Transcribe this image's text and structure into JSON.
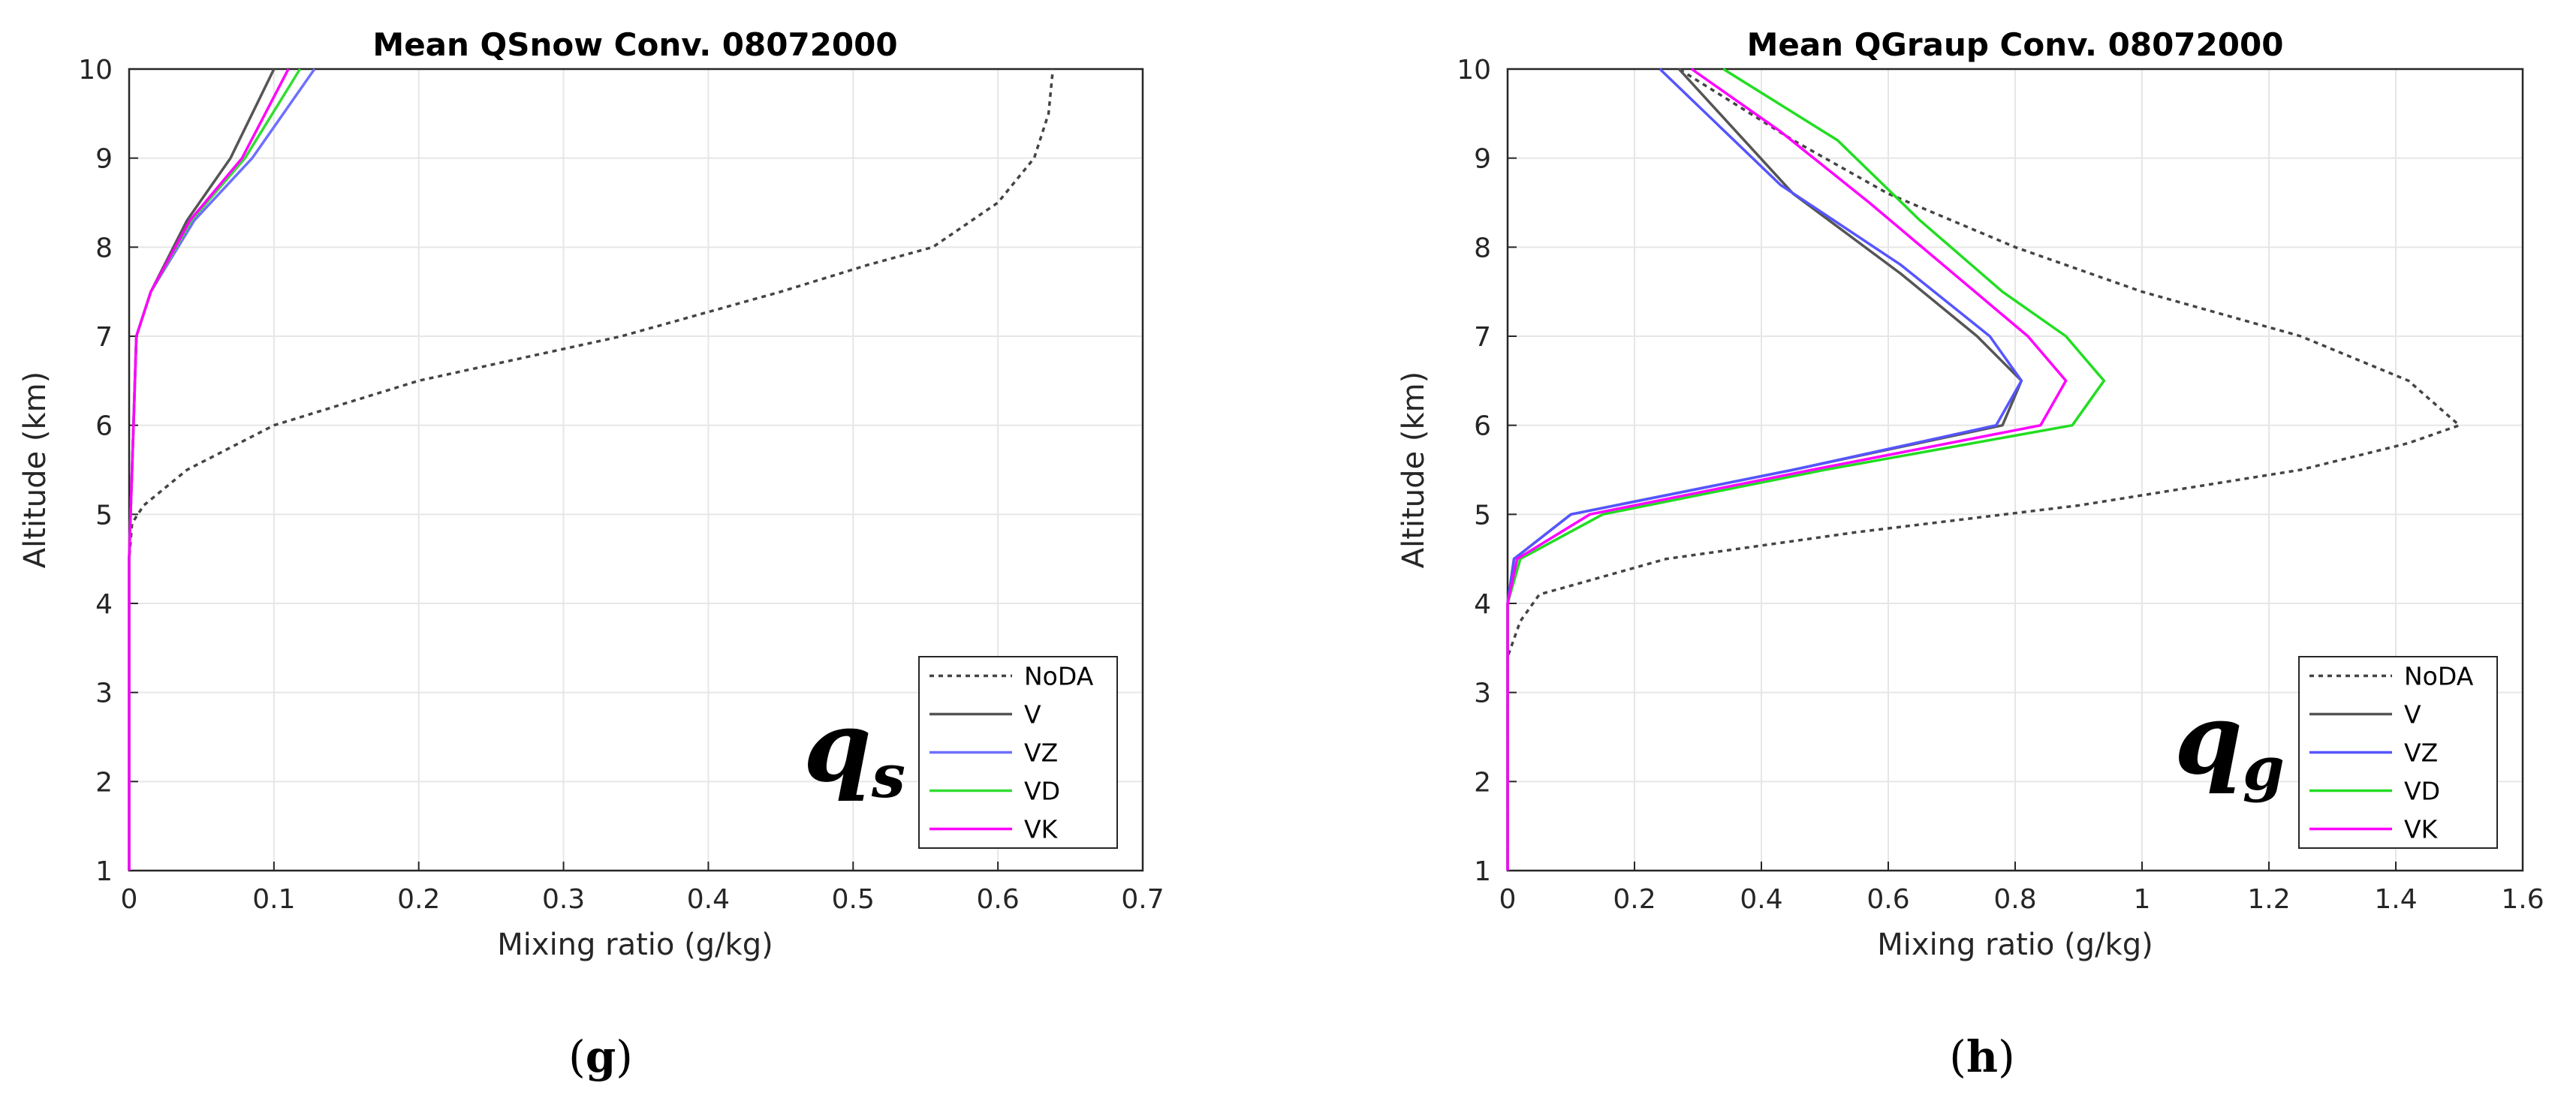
{
  "chart_data": [
    {
      "type": "line",
      "panel_label": "g",
      "title": "Mean QSnow Conv. 08072000",
      "xlabel": "Mixing ratio (g/kg)",
      "ylabel": "Altitude (km)",
      "xlim": [
        0,
        0.7
      ],
      "ylim": [
        1,
        10
      ],
      "xticks": [
        0,
        0.1,
        0.2,
        0.3,
        0.4,
        0.5,
        0.6,
        0.7
      ],
      "xtick_labels": [
        "0",
        "0.1",
        "0.2",
        "0.3",
        "0.4",
        "0.5",
        "0.6",
        "0.7"
      ],
      "yticks": [
        1,
        2,
        3,
        4,
        5,
        6,
        7,
        8,
        9,
        10
      ],
      "ytick_labels": [
        "1",
        "2",
        "3",
        "4",
        "5",
        "6",
        "7",
        "8",
        "9",
        "10"
      ],
      "grid": true,
      "legend": "bottom-right",
      "var_label": {
        "main": "q",
        "sub": "s"
      },
      "series": [
        {
          "name": "NoDA",
          "style": "dotted",
          "color": "#444444",
          "points": [
            [
              0,
              1
            ],
            [
              0,
              4
            ],
            [
              0,
              4.5
            ],
            [
              0.002,
              4.9
            ],
            [
              0.01,
              5.1
            ],
            [
              0.04,
              5.5
            ],
            [
              0.1,
              6.0
            ],
            [
              0.2,
              6.5
            ],
            [
              0.34,
              7.0
            ],
            [
              0.45,
              7.5
            ],
            [
              0.51,
              7.8
            ],
            [
              0.555,
              8.0
            ],
            [
              0.6,
              8.5
            ],
            [
              0.625,
              9.0
            ],
            [
              0.635,
              9.5
            ],
            [
              0.638,
              10
            ]
          ]
        },
        {
          "name": "V",
          "style": "solid",
          "color": "#555555",
          "points": [
            [
              0,
              1
            ],
            [
              0,
              4.5
            ],
            [
              0.001,
              5.0
            ],
            [
              0.003,
              6.0
            ],
            [
              0.005,
              7.0
            ],
            [
              0.015,
              7.5
            ],
            [
              0.04,
              8.3
            ],
            [
              0.07,
              9.0
            ],
            [
              0.1,
              10
            ]
          ]
        },
        {
          "name": "VZ",
          "style": "solid",
          "color": "#6f6fff",
          "points": [
            [
              0,
              1
            ],
            [
              0,
              4.5
            ],
            [
              0.001,
              5.0
            ],
            [
              0.003,
              6.0
            ],
            [
              0.005,
              7.0
            ],
            [
              0.015,
              7.5
            ],
            [
              0.045,
              8.3
            ],
            [
              0.085,
              9.0
            ],
            [
              0.128,
              10
            ]
          ]
        },
        {
          "name": "VD",
          "style": "solid",
          "color": "#33dd33",
          "points": [
            [
              0,
              1
            ],
            [
              0,
              4.5
            ],
            [
              0.001,
              5.0
            ],
            [
              0.003,
              6.0
            ],
            [
              0.005,
              7.0
            ],
            [
              0.015,
              7.5
            ],
            [
              0.043,
              8.3
            ],
            [
              0.08,
              9.0
            ],
            [
              0.118,
              10
            ]
          ]
        },
        {
          "name": "VK",
          "style": "solid",
          "color": "#ff00ff",
          "points": [
            [
              0,
              1
            ],
            [
              0,
              4.5
            ],
            [
              0.001,
              5.0
            ],
            [
              0.003,
              6.0
            ],
            [
              0.005,
              7.0
            ],
            [
              0.015,
              7.5
            ],
            [
              0.042,
              8.3
            ],
            [
              0.078,
              9.0
            ],
            [
              0.11,
              10
            ]
          ]
        }
      ]
    },
    {
      "type": "line",
      "panel_label": "h",
      "title": "Mean QGraup Conv. 08072000",
      "xlabel": "Mixing ratio (g/kg)",
      "ylabel": "Altitude (km)",
      "xlim": [
        0,
        1.6
      ],
      "ylim": [
        1,
        10
      ],
      "xticks": [
        0,
        0.2,
        0.4,
        0.6,
        0.8,
        1,
        1.2,
        1.4,
        1.6
      ],
      "xtick_labels": [
        "0",
        "0.2",
        "0.4",
        "0.6",
        "0.8",
        "1",
        "1.2",
        "1.4",
        "1.6"
      ],
      "yticks": [
        1,
        2,
        3,
        4,
        5,
        6,
        7,
        8,
        9,
        10
      ],
      "ytick_labels": [
        "1",
        "2",
        "3",
        "4",
        "5",
        "6",
        "7",
        "8",
        "9",
        "10"
      ],
      "grid": true,
      "legend": "bottom-right",
      "var_label": {
        "main": "q",
        "sub": "g"
      },
      "series": [
        {
          "name": "NoDA",
          "style": "dotted",
          "color": "#444444",
          "points": [
            [
              0,
              1
            ],
            [
              0,
              3.4
            ],
            [
              0.02,
              3.8
            ],
            [
              0.05,
              4.1
            ],
            [
              0.25,
              4.5
            ],
            [
              0.55,
              4.8
            ],
            [
              0.9,
              5.1
            ],
            [
              1.25,
              5.5
            ],
            [
              1.42,
              5.8
            ],
            [
              1.5,
              6.0
            ],
            [
              1.42,
              6.5
            ],
            [
              1.25,
              7.0
            ],
            [
              1.0,
              7.5
            ],
            [
              0.8,
              8.0
            ],
            [
              0.6,
              8.6
            ],
            [
              0.45,
              9.2
            ],
            [
              0.27,
              10
            ]
          ]
        },
        {
          "name": "V",
          "style": "solid",
          "color": "#555555",
          "points": [
            [
              0,
              1
            ],
            [
              0,
              4.0
            ],
            [
              0.01,
              4.5
            ],
            [
              0.1,
              5.0
            ],
            [
              0.45,
              5.5
            ],
            [
              0.78,
              6.0
            ],
            [
              0.81,
              6.5
            ],
            [
              0.74,
              7.0
            ],
            [
              0.62,
              7.7
            ],
            [
              0.45,
              8.6
            ],
            [
              0.27,
              10
            ]
          ]
        },
        {
          "name": "VZ",
          "style": "solid",
          "color": "#5555ff",
          "points": [
            [
              0,
              1
            ],
            [
              0,
              4.0
            ],
            [
              0.01,
              4.5
            ],
            [
              0.1,
              5.0
            ],
            [
              0.45,
              5.5
            ],
            [
              0.77,
              6.0
            ],
            [
              0.81,
              6.5
            ],
            [
              0.76,
              7.0
            ],
            [
              0.62,
              7.8
            ],
            [
              0.43,
              8.7
            ],
            [
              0.24,
              10
            ]
          ]
        },
        {
          "name": "VD",
          "style": "solid",
          "color": "#22dd22",
          "points": [
            [
              0,
              1
            ],
            [
              0,
              4.0
            ],
            [
              0.02,
              4.5
            ],
            [
              0.15,
              5.0
            ],
            [
              0.5,
              5.5
            ],
            [
              0.89,
              6.0
            ],
            [
              0.94,
              6.5
            ],
            [
              0.88,
              7.0
            ],
            [
              0.78,
              7.5
            ],
            [
              0.65,
              8.3
            ],
            [
              0.52,
              9.2
            ],
            [
              0.34,
              10
            ]
          ]
        },
        {
          "name": "VK",
          "style": "solid",
          "color": "#ff00ff",
          "points": [
            [
              0,
              1
            ],
            [
              0,
              4.0
            ],
            [
              0.015,
              4.5
            ],
            [
              0.13,
              5.0
            ],
            [
              0.48,
              5.5
            ],
            [
              0.84,
              6.0
            ],
            [
              0.88,
              6.5
            ],
            [
              0.82,
              7.0
            ],
            [
              0.72,
              7.6
            ],
            [
              0.57,
              8.5
            ],
            [
              0.43,
              9.3
            ],
            [
              0.29,
              10
            ]
          ]
        }
      ]
    }
  ]
}
